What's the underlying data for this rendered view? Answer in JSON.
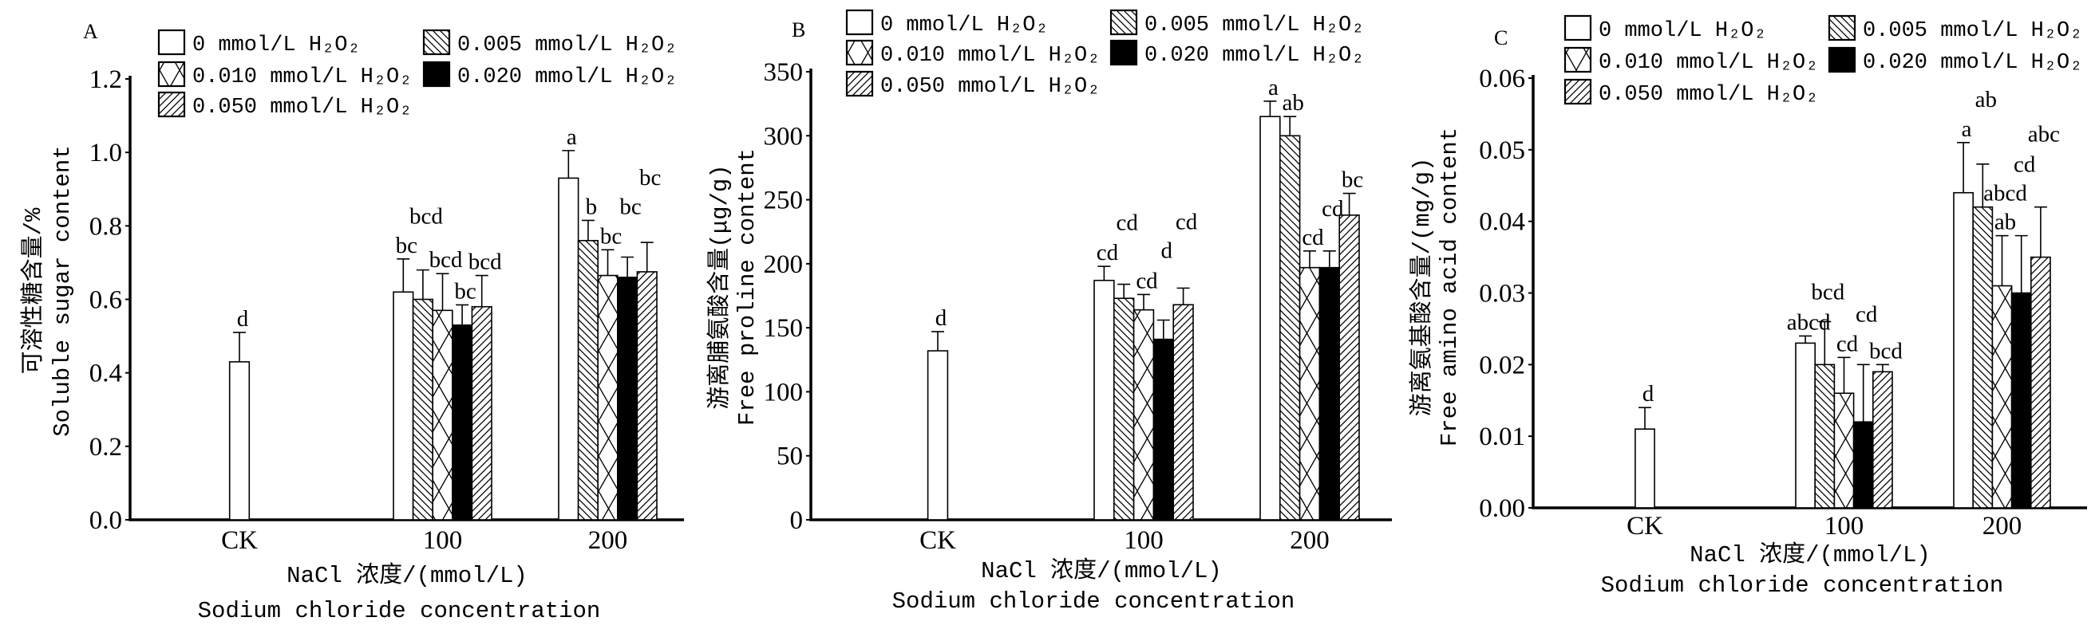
{
  "legend": [
    {
      "label": "0 mmol/L H₂O₂",
      "pattern": "white"
    },
    {
      "label": "0.005 mmol/L H₂O₂",
      "pattern": "backslash-hatch"
    },
    {
      "label": "0.010 mmol/L H₂O₂",
      "pattern": "cross-hatch"
    },
    {
      "label": "0.020 mmol/L H₂O₂",
      "pattern": "solid-black"
    },
    {
      "label": "0.050 mmol/L H₂O₂",
      "pattern": "slash-hatch"
    }
  ],
  "chart_data": [
    {
      "type": "bar",
      "panel": "A",
      "title": "",
      "categories": [
        "CK",
        "100",
        "200"
      ],
      "xlabel": [
        "NaCl 浓度/(mmol/L)",
        "Sodium chloride concentration"
      ],
      "ylabel": [
        "可溶性糖含量/%",
        "Soluble sugar content"
      ],
      "ylim": [
        0,
        1.2
      ],
      "yticks": [
        "0.0",
        "0.2",
        "0.4",
        "0.6",
        "0.8",
        "1.0",
        "1.2"
      ],
      "series": [
        {
          "name": "0 mmol/L H₂O₂",
          "values": [
            0.43,
            0.62,
            0.93
          ],
          "errors": [
            0.08,
            0.09,
            0.075
          ],
          "letters": [
            [
              "d"
            ],
            [
              "bc"
            ],
            [
              "a"
            ]
          ]
        },
        {
          "name": "0.005 mmol/L H₂O₂",
          "values": [
            null,
            0.6,
            0.76
          ],
          "errors": [
            null,
            0.08,
            0.055
          ],
          "letters": [
            [],
            [
              "bcd"
            ],
            [
              "b"
            ]
          ]
        },
        {
          "name": "0.010 mmol/L H₂O₂",
          "values": [
            null,
            0.57,
            0.665
          ],
          "errors": [
            null,
            0.1,
            0.07
          ],
          "letters": [
            [],
            [
              "bcd"
            ],
            [
              "bc"
            ]
          ]
        },
        {
          "name": "0.020 mmol/L H₂O₂",
          "values": [
            null,
            0.53,
            0.66
          ],
          "errors": [
            null,
            0.055,
            0.055
          ],
          "letters": [
            [],
            [
              "bc"
            ],
            [
              "bc"
            ]
          ]
        },
        {
          "name": "0.050 mmol/L H₂O₂",
          "values": [
            null,
            0.58,
            0.675
          ],
          "errors": [
            null,
            0.085,
            0.08
          ],
          "letters": [
            [],
            [
              "bcd"
            ],
            [
              "bc"
            ]
          ]
        }
      ]
    },
    {
      "type": "bar",
      "panel": "B",
      "title": "",
      "categories": [
        "CK",
        "100",
        "200"
      ],
      "xlabel": [
        "NaCl 浓度/(mmol/L)",
        "Sodium chloride concentration"
      ],
      "ylabel": [
        "游离脯氨酸含量(μg/g)",
        "Free proline content"
      ],
      "ylim": [
        0,
        350
      ],
      "yticks": [
        "0",
        "50",
        "100",
        "150",
        "200",
        "250",
        "300",
        "350"
      ],
      "series": [
        {
          "name": "0 mmol/L H₂O₂",
          "values": [
            132,
            187,
            315
          ],
          "errors": [
            15,
            11,
            12
          ],
          "letters": [
            [
              "d"
            ],
            [
              "cd"
            ],
            [
              "a"
            ]
          ]
        },
        {
          "name": "0.005 mmol/L H₂O₂",
          "values": [
            null,
            173,
            300
          ],
          "errors": [
            null,
            11,
            15
          ],
          "letters": [
            [],
            [
              "cd"
            ],
            [
              "ab"
            ]
          ]
        },
        {
          "name": "0.010 mmol/L H₂O₂",
          "values": [
            null,
            164,
            197
          ],
          "errors": [
            null,
            12,
            13
          ],
          "letters": [
            [],
            [
              "cd"
            ],
            [
              "cd"
            ]
          ]
        },
        {
          "name": "0.020 mmol/L H₂O₂",
          "values": [
            null,
            141,
            197
          ],
          "errors": [
            null,
            15,
            13
          ],
          "letters": [
            [],
            [
              "d"
            ],
            [
              "cd"
            ]
          ]
        },
        {
          "name": "0.050 mmol/L H₂O₂",
          "values": [
            null,
            168,
            238
          ],
          "errors": [
            null,
            13,
            17
          ],
          "letters": [
            [],
            [
              "cd"
            ],
            [
              "bc"
            ]
          ]
        }
      ]
    },
    {
      "type": "bar",
      "panel": "C",
      "title": "",
      "categories": [
        "CK",
        "100",
        "200"
      ],
      "xlabel": [
        "NaCl 浓度/(mmol/L)",
        "Sodium chloride concentration"
      ],
      "ylabel": [
        "游离氨基酸含量/(mg/g)",
        "Free amino acid content"
      ],
      "ylim": [
        0,
        0.06
      ],
      "yticks": [
        "0.00",
        "0.01",
        "0.02",
        "0.03",
        "0.04",
        "0.05",
        "0.06"
      ],
      "series": [
        {
          "name": "0 mmol/L H₂O₂",
          "values": [
            0.011,
            0.023,
            0.044
          ],
          "errors": [
            0.003,
            0.001,
            0.007
          ],
          "letters": [
            [
              "d"
            ],
            [
              "abcd"
            ],
            [
              "a"
            ]
          ]
        },
        {
          "name": "0.005 mmol/L H₂O₂",
          "values": [
            null,
            0.02,
            0.042
          ],
          "errors": [
            null,
            0.006,
            0.006
          ],
          "letters": [
            [],
            [
              "bcd"
            ],
            [
              "ab"
            ]
          ]
        },
        {
          "name": "0.010 mmol/L H₂O₂",
          "values": [
            null,
            0.016,
            0.031
          ],
          "errors": [
            null,
            0.005,
            0.007
          ],
          "letters": [
            [],
            [
              "cd"
            ],
            [
              "ab",
              "abcd"
            ]
          ]
        },
        {
          "name": "0.020 mmol/L H₂O₂",
          "values": [
            null,
            0.012,
            0.03
          ],
          "errors": [
            null,
            0.008,
            0.008
          ],
          "letters": [
            [],
            [
              "cd"
            ],
            [
              "cd"
            ]
          ]
        },
        {
          "name": "0.050 mmol/L H₂O₂",
          "values": [
            null,
            0.019,
            0.035
          ],
          "errors": [
            null,
            0.001,
            0.007
          ],
          "letters": [
            [],
            [
              "bcd"
            ],
            [
              "abc"
            ]
          ]
        }
      ]
    }
  ]
}
